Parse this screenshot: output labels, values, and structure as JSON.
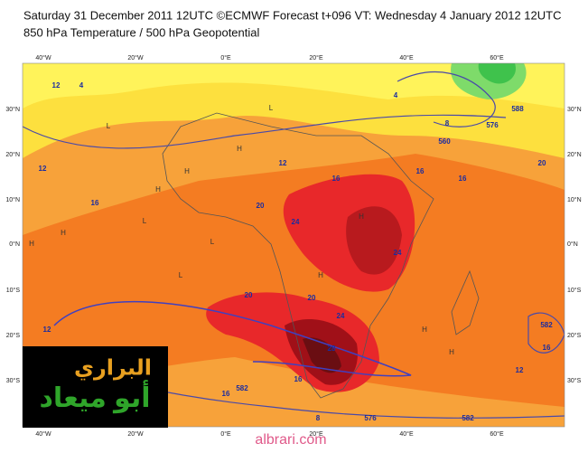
{
  "header": {
    "line1": "Saturday 31 December 2011 12UTC ©ECMWF Forecast t+096 VT: Wednesday 4 January 2012 12UTC",
    "line2": "850 hPa Temperature / 500 hPa Geopotential"
  },
  "map": {
    "lon_labels": [
      "40°W",
      "20°W",
      "0°E",
      "20°E",
      "40°E",
      "60°E"
    ],
    "lat_labels": [
      "30°N",
      "20°N",
      "10°N",
      "0°N",
      "10°S",
      "20°S",
      "30°S"
    ],
    "contour_labels": [
      "12",
      "4",
      "12",
      "12",
      "16",
      "16",
      "20",
      "24",
      "24",
      "20",
      "20",
      "24",
      "28",
      "16",
      "16",
      "20",
      "4",
      "8",
      "560",
      "576",
      "588",
      "12",
      "16",
      "582",
      "16",
      "12",
      "8",
      "576",
      "582",
      "16",
      "582"
    ],
    "pressure_marks": [
      "H",
      "L",
      "H",
      "L",
      "H",
      "H",
      "L",
      "H",
      "H",
      "L",
      "H",
      "L",
      "H",
      "H"
    ]
  },
  "logo": {
    "line1": "البراري",
    "line2": "أبو ميعاد"
  },
  "watermark": "albrari.com"
}
